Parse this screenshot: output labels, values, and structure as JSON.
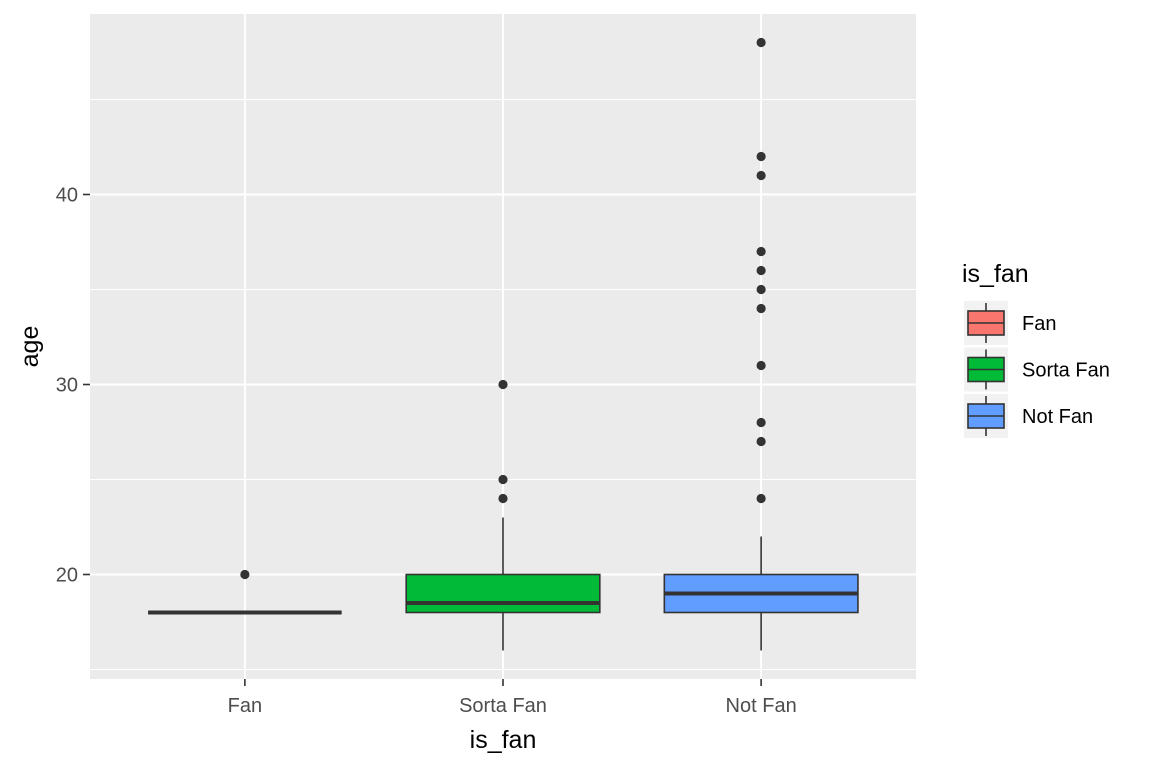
{
  "chart_data": {
    "type": "box",
    "title": "",
    "xlabel": "is_fan",
    "ylabel": "age",
    "ylim": [
      14.5,
      49.5
    ],
    "y_ticks": [
      20,
      30,
      40
    ],
    "y_tick_labels": [
      "20",
      "30",
      "40"
    ],
    "grid": true,
    "legend": {
      "title": "is_fan",
      "position": "right",
      "entries": [
        "Fan",
        "Sorta Fan",
        "Not Fan"
      ]
    },
    "categories": [
      "Fan",
      "Sorta Fan",
      "Not Fan"
    ],
    "series": [
      {
        "name": "Fan",
        "color": "#F8766D",
        "min": 18,
        "q1": 18,
        "median": 18,
        "q3": 18,
        "max": 18,
        "outliers": [
          20
        ]
      },
      {
        "name": "Sorta Fan",
        "color": "#00BA38",
        "min": 16,
        "q1": 18,
        "median": 18.5,
        "q3": 20,
        "max": 23,
        "outliers": [
          24,
          25,
          30
        ]
      },
      {
        "name": "Not Fan",
        "color": "#619CFF",
        "min": 16,
        "q1": 18,
        "median": 19,
        "q3": 20,
        "max": 22,
        "outliers": [
          24,
          27,
          28,
          31,
          34,
          35,
          36,
          37,
          41,
          42,
          48
        ]
      }
    ]
  }
}
